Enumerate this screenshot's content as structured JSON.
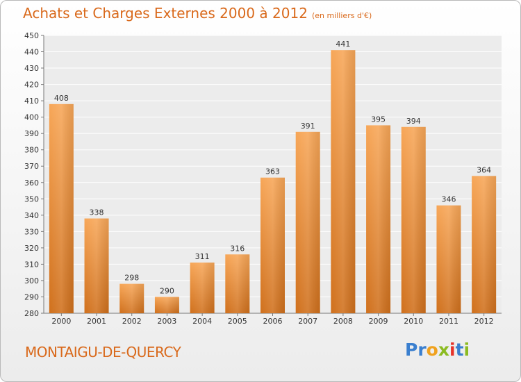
{
  "title": "Achats et Charges Externes 2000 à 2012",
  "subtitle": "(en milliers d'€)",
  "commune": "MONTAIGU-DE-QUERCY",
  "logo": {
    "letters": [
      {
        "ch": "P",
        "color": "#3a7fcf"
      },
      {
        "ch": "r",
        "color": "#3a7fcf"
      },
      {
        "ch": "o",
        "color": "#f0a21e"
      },
      {
        "ch": "x",
        "color": "#8bbb21"
      },
      {
        "ch": "i",
        "color": "#e6332a"
      },
      {
        "ch": "t",
        "color": "#3a7fcf"
      },
      {
        "ch": "i",
        "color": "#8bbb21"
      }
    ]
  },
  "colors": {
    "bar_light": "#f7a657",
    "bar_dark": "#d0701c",
    "title": "#d9691b"
  },
  "chart_data": {
    "type": "bar",
    "categories": [
      "2000",
      "2001",
      "2002",
      "2003",
      "2004",
      "2005",
      "2006",
      "2007",
      "2008",
      "2009",
      "2010",
      "2011",
      "2012"
    ],
    "values": [
      408,
      338,
      298,
      290,
      311,
      316,
      363,
      391,
      441,
      395,
      394,
      346,
      364
    ],
    "ylim": [
      280,
      450
    ],
    "yticks": [
      280,
      290,
      300,
      310,
      320,
      330,
      340,
      350,
      360,
      370,
      380,
      390,
      400,
      410,
      420,
      430,
      440,
      450
    ],
    "grid": true,
    "data_labels": true
  }
}
